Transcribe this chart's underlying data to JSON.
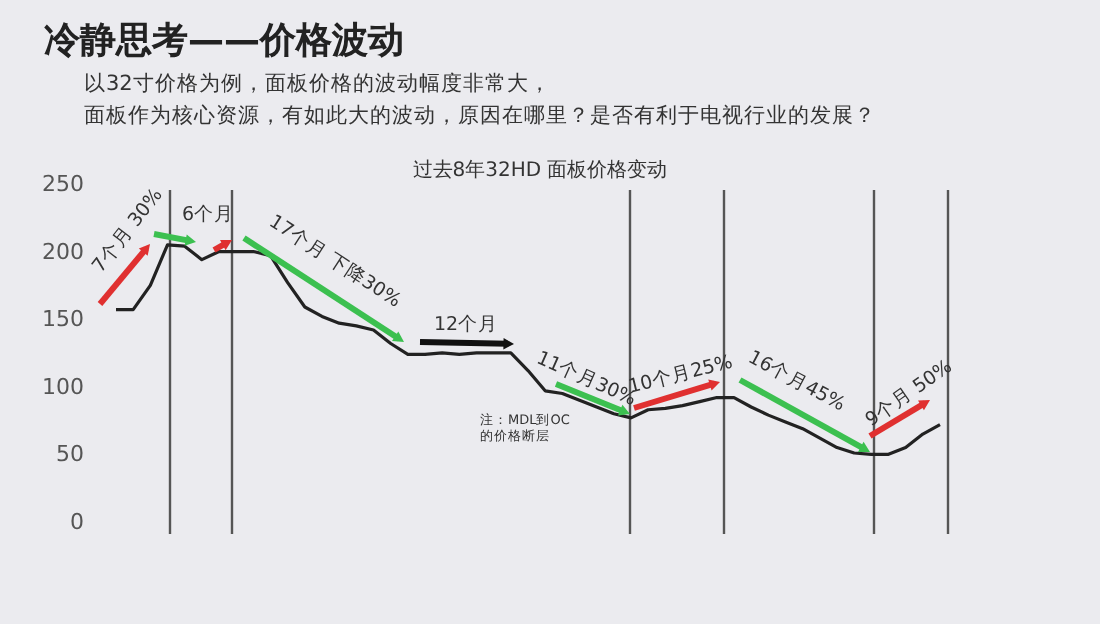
{
  "chart_data": {
    "type": "line",
    "title": "冷静思考——价格波动",
    "subtitle": "以32寸价格为例，面板价格的波动幅度非常大，",
    "xlabel": "过去8年32HD 面板价格变动",
    "categories": [
      null,
      null,
      null,
      null,
      null,
      null,
      null,
      null,
      null,
      null,
      null,
      null,
      null,
      null,
      null,
      null,
      null,
      null,
      null,
      null,
      null,
      null,
      null,
      null,
      null,
      null,
      null,
      null,
      null,
      null,
      null,
      null,
      null,
      null,
      null,
      null,
      null,
      null,
      null,
      null,
      null,
      null,
      null,
      null,
      null,
      null,
      null,
      null,
      null
    ],
    "series": [
      {
        "color": "#222222",
        "values": [
          160,
          160,
          178,
          208,
          207,
          197,
          203,
          203,
          203,
          200,
          180,
          162,
          155,
          150,
          148,
          145,
          135,
          127,
          127,
          128,
          127,
          128,
          128,
          128,
          115,
          100,
          98,
          93,
          88,
          83,
          80,
          86,
          87,
          89,
          92,
          95,
          95,
          88,
          82,
          77,
          72,
          65,
          58,
          54,
          53,
          53,
          58,
          68,
          75
        ]
      }
    ],
    "ylim": [
      0,
      250
    ],
    "yticks": [
      0,
      50,
      100,
      150,
      200,
      250
    ],
    "marker": "none",
    "line_style": "solid",
    "annotations": [
      "面板作为核心资源，有如此大的波动，原因在哪里？是否有利于电视行业的发展？",
      "7个月 30%",
      "6个月",
      "17个月 下降30%",
      "12个月",
      "11个月30%",
      "10个月25%",
      "16个月45%",
      "9个月 50%",
      "注：MDL到OC的价格断层"
    ]
  }
}
